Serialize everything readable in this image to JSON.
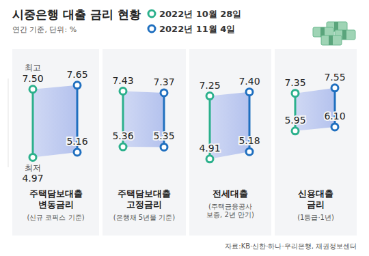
{
  "chart_data": {
    "type": "range",
    "title": "시중은행 대출 금리 현황",
    "subtitle": "연간 기준, 단위: %",
    "categories": [
      "주택담보대출 변동금리",
      "주택담보대출 고정금리",
      "전세대출",
      "신용대출 금리"
    ],
    "category_notes": [
      "(신규 코픽스 기준)",
      "(은행채 5년물 기준)",
      "(주택금융공사 보증, 2년 만기)",
      "(1등급·1년)"
    ],
    "series": [
      {
        "name": "2022년 10월 28일",
        "color": "#2bb08c",
        "marker": "circle",
        "values": [
          7.5,
          7.43,
          7.25,
          7.35
        ],
        "value_labels": [
          "7.50",
          "7.43",
          "7.25",
          "7.35"
        ],
        "low": [
          4.97,
          5.36,
          4.91,
          5.95
        ],
        "low_labels": [
          "4.97",
          "5.36",
          "4.91",
          "5.95"
        ]
      },
      {
        "name": "2022년 11월 4일",
        "color": "#1f6fbf",
        "marker": "circle",
        "values": [
          7.65,
          7.37,
          7.4,
          7.55
        ],
        "value_labels": [
          "7.65",
          "7.37",
          "7.40",
          "7.55"
        ],
        "low": [
          5.16,
          5.35,
          5.18,
          6.1
        ],
        "low_labels": [
          "5.16",
          "5.35",
          "5.18",
          "6.10"
        ]
      }
    ],
    "annotations": {
      "high": "최고",
      "low": "최저"
    },
    "ylim": [
      4.6,
      7.9
    ],
    "tick_labels": false,
    "data_labels": true,
    "source": "자료:KB·신한·하나·우리은행, 채권정보센터"
  }
}
